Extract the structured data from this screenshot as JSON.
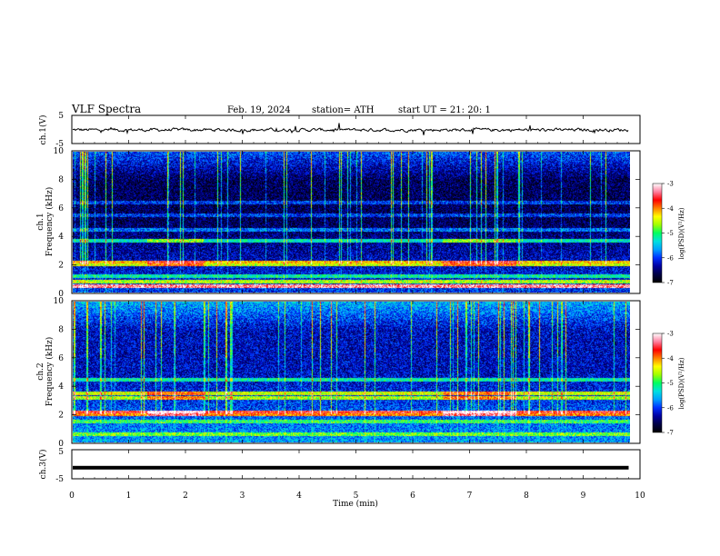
{
  "header": {
    "title": "VLF  Spectra",
    "date": "Feb. 19, 2024",
    "station": "station= ATH",
    "start": "start  UT  =    21: 20: 1"
  },
  "chart_data": [
    {
      "type": "line",
      "panel": "ch1-waveform",
      "ylabel": "ch.1(V)",
      "ylim": [
        -5,
        5
      ],
      "yticks": [
        "5",
        "-5"
      ],
      "xlim": [
        0,
        10
      ],
      "series": [
        {
          "values_note_mean": 0.0,
          "amplitude_estimate": 0.6
        }
      ]
    },
    {
      "type": "heatmap",
      "panel": "ch1-spectrogram",
      "ylabel": "ch.1\nFrequency  (kHz)",
      "ylabel_lines": [
        "ch.1",
        "Frequency  (kHz)"
      ],
      "ylim": [
        0,
        10
      ],
      "yticks": [
        "0",
        "2",
        "4",
        "6",
        "8",
        "10"
      ],
      "xlim": [
        0,
        10
      ],
      "colorbar": {
        "label": "log(PSD)(V²/Hz)",
        "range": [
          -7,
          -3
        ],
        "ticks": [
          "-3",
          "-4",
          "-5",
          "-6",
          "-7"
        ]
      },
      "data_end_min": 9.8,
      "bands_khz": [
        {
          "freq": 0.5,
          "level": -3.3
        },
        {
          "freq": 0.8,
          "level": -4.6
        },
        {
          "freq": 1.2,
          "level": -5.2
        },
        {
          "freq": 2.0,
          "level": -4.5
        },
        {
          "freq": 2.2,
          "level": -4.2
        },
        {
          "freq": 3.7,
          "level": -5.3
        },
        {
          "freq": 4.5,
          "level": -5.8
        },
        {
          "freq": 5.5,
          "level": -6.0
        },
        {
          "freq": 6.4,
          "level": -6.0
        }
      ],
      "enhanced_intervals_min": [
        [
          1.3,
          2.3
        ],
        [
          6.5,
          7.8
        ]
      ]
    },
    {
      "type": "heatmap",
      "panel": "ch2-spectrogram",
      "ylabel_lines": [
        "ch.2",
        "Frequency  (kHz)"
      ],
      "ylim": [
        0,
        10
      ],
      "yticks": [
        "0",
        "2",
        "4",
        "6",
        "8",
        "10"
      ],
      "xlim": [
        0,
        10
      ],
      "colorbar": {
        "label": "log(PSD)(V²/Hz)",
        "range": [
          -7,
          -3
        ],
        "ticks": [
          "-3",
          "-4",
          "-5",
          "-6",
          "-7"
        ]
      },
      "data_end_min": 9.8,
      "bands_khz": [
        {
          "freq": 0.6,
          "level": -4.8
        },
        {
          "freq": 1.5,
          "level": -5.0
        },
        {
          "freq": 2.0,
          "level": -4.0
        },
        {
          "freq": 2.2,
          "level": -3.6
        },
        {
          "freq": 3.2,
          "level": -4.6
        },
        {
          "freq": 3.5,
          "level": -4.5
        },
        {
          "freq": 4.5,
          "level": -5.2
        }
      ],
      "enhanced_intervals_min": [
        [
          1.3,
          2.3
        ],
        [
          6.5,
          7.8
        ]
      ]
    },
    {
      "type": "line",
      "panel": "ch3-waveform",
      "ylabel": "ch.3(V)",
      "ylim": [
        -5,
        5
      ],
      "yticks": [
        "5",
        "-5"
      ],
      "xlim": [
        0,
        10
      ],
      "series": [
        {
          "constant_value": -1.2
        }
      ]
    }
  ],
  "xaxis": {
    "label": "Time  (min)",
    "ticks": [
      "0",
      "1",
      "2",
      "3",
      "4",
      "5",
      "6",
      "7",
      "8",
      "9",
      "10"
    ]
  },
  "colors": {
    "cmap": [
      "#000000",
      "#000044",
      "#0000a0",
      "#0030ff",
      "#00a0ff",
      "#00e0e0",
      "#00ff60",
      "#a0ff00",
      "#ffff00",
      "#ff8000",
      "#ff0000",
      "#ff80a0",
      "#ffffff"
    ]
  }
}
